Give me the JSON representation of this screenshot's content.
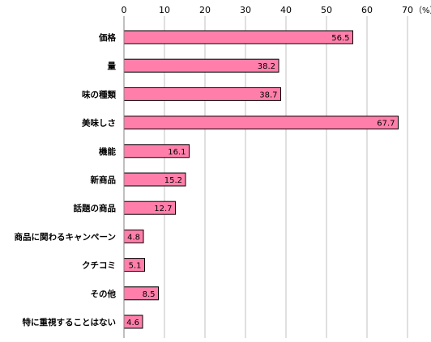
{
  "chart_data": {
    "type": "bar",
    "orientation": "horizontal",
    "unit": "（%）",
    "xlim": [
      0,
      70
    ],
    "xticks": [
      "0",
      "10",
      "20",
      "30",
      "40",
      "50",
      "60",
      "70"
    ],
    "categories": [
      "価格",
      "量",
      "味の種類",
      "美味しさ",
      "機能",
      "新商品",
      "話題の商品",
      "商品に関わるキャンペーン",
      "クチコミ",
      "その他",
      "特に重視することはない"
    ],
    "values": [
      56.5,
      38.2,
      38.7,
      67.7,
      16.1,
      15.2,
      12.7,
      4.8,
      5.1,
      8.5,
      4.6
    ],
    "value_labels": [
      "56.5",
      "38.2",
      "38.7",
      "67.7",
      "16.1",
      "15.2",
      "12.7",
      "4.8",
      "5.1",
      "8.5",
      "4.6"
    ],
    "grid": true,
    "bar_color": "#FF7FAA",
    "bar_stroke": "#000000",
    "grid_color": "#C0C0C0"
  }
}
